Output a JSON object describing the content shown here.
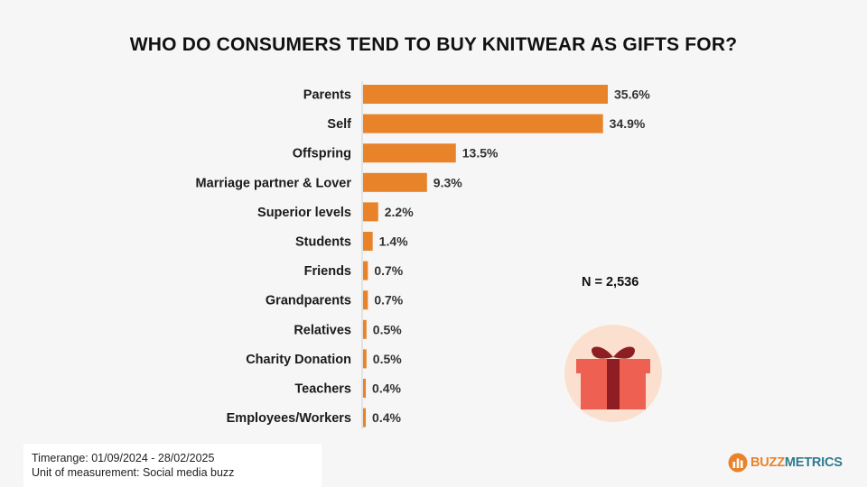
{
  "chart_data": {
    "type": "bar",
    "orientation": "horizontal",
    "title": "WHO DO CONSUMERS TEND TO BUY KNITWEAR AS GIFTS FOR?",
    "categories": [
      "Parents",
      "Self",
      "Offspring",
      "Marriage partner & Lover",
      "Superior levels",
      "Students",
      "Friends",
      "Grandparents",
      "Relatives",
      "Charity Donation",
      "Teachers",
      "Employees/Workers"
    ],
    "values": [
      35.6,
      34.9,
      13.5,
      9.3,
      2.2,
      1.4,
      0.7,
      0.7,
      0.5,
      0.5,
      0.4,
      0.4
    ],
    "value_labels": [
      "35.6%",
      "34.9%",
      "13.5%",
      "9.3%",
      "2.2%",
      "1.4%",
      "0.7%",
      "0.7%",
      "0.5%",
      "0.5%",
      "0.4%",
      "0.4%"
    ],
    "xlim": [
      0,
      35.6
    ],
    "grid": false,
    "bar_color": "#e8832a"
  },
  "annotation": "N = 2,536",
  "footer": {
    "timerange": "Timerange: 01/09/2024 - 28/02/2025",
    "unit": "Unit of measurement: Social media buzz"
  },
  "brand": {
    "part1": "BUZZ",
    "part2": "METRICS",
    "icon": "buzzmetrics-logo-icon"
  },
  "decor": {
    "icon": "gift-box-icon",
    "circle_color": "#fbe0cf",
    "box_color": "#ee6052",
    "ribbon_color": "#8e1e22"
  }
}
